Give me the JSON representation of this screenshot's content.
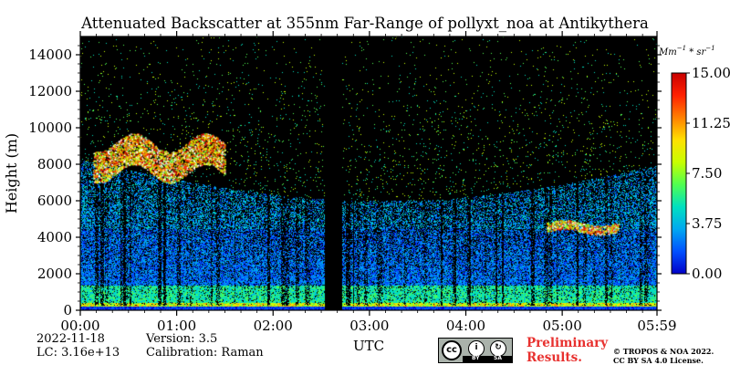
{
  "chart_data": {
    "type": "heatmap",
    "title": "Attenuated Backscatter at 355nm Far-Range of pollyxt_noa at Antikythera",
    "ylabel": "Height (m)",
    "xlabel": "UTC",
    "ylim": [
      0,
      15000
    ],
    "xlim": [
      "00:00",
      "05:59"
    ],
    "x_ticks": [
      "00:00",
      "01:00",
      "02:00",
      "03:00",
      "04:00",
      "05:00",
      "05:59"
    ],
    "y_ticks": [
      0,
      2000,
      4000,
      6000,
      8000,
      10000,
      12000,
      14000
    ],
    "colorbar": {
      "unit": "Mm^-1*sr^-1",
      "range": [
        0,
        15
      ],
      "tick_labels": [
        "0.00",
        "3.75",
        "7.50",
        "11.25",
        "15.00"
      ],
      "colormap": [
        "#0000c8",
        "#0050ff",
        "#00a8f0",
        "#00e0c0",
        "#50ff50",
        "#c8ff00",
        "#ffe000",
        "#ff8000",
        "#ff2000",
        "#c80000"
      ]
    },
    "features": [
      {
        "name": "no-data gap",
        "time_start": "02:32",
        "time_end": "02:43"
      },
      {
        "name": "cloud layer",
        "time_start": "00:08",
        "time_end": "01:30",
        "height_range": [
          7500,
          9200
        ]
      },
      {
        "name": "cloud layer",
        "time_start": "04:50",
        "time_end": "05:35",
        "height_range": [
          4300,
          4800
        ]
      }
    ]
  },
  "footer": {
    "date": "2022-11-18",
    "lc": "LC: 3.16e+13",
    "version": "Version: 3.5",
    "calibration": "Calibration: Raman",
    "preliminary_line1": "Preliminary",
    "preliminary_line2": "Results.",
    "copyright_line1": "© TROPOS & NOA 2022.",
    "copyright_line2": "CC BY SA 4.0 License.",
    "license_badge": {
      "cc": "cc",
      "by": "BY",
      "sa": "SA"
    }
  }
}
